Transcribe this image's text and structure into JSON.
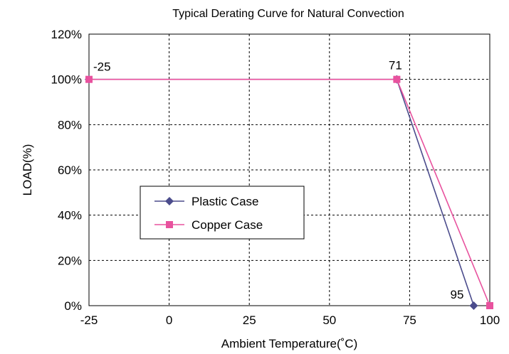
{
  "chart_data": {
    "type": "line",
    "title": "Typical Derating Curve for Natural Convection",
    "xlabel": "Ambient Temperature(˚C)",
    "ylabel": "LOAD(%)",
    "xlim": [
      -25,
      100
    ],
    "ylim": [
      0,
      120
    ],
    "x_ticks": [
      -25,
      0,
      25,
      50,
      75,
      100
    ],
    "x_tick_labels": [
      "-25",
      "0",
      "25",
      "50",
      "75",
      "100"
    ],
    "y_ticks": [
      0,
      20,
      40,
      60,
      80,
      100,
      120
    ],
    "y_tick_labels": [
      "0%",
      "20%",
      "40%",
      "60%",
      "80%",
      "100%",
      "120%"
    ],
    "grid": true,
    "legend_position": "center-left",
    "series": [
      {
        "name": "Plastic Case",
        "color": "#4b4c8c",
        "marker": "diamond",
        "points": [
          [
            -25,
            100
          ],
          [
            71,
            100
          ],
          [
            95,
            0
          ]
        ]
      },
      {
        "name": "Copper Case",
        "color": "#e8529e",
        "marker": "square",
        "points": [
          [
            -25,
            100
          ],
          [
            71,
            100
          ],
          [
            100,
            0
          ]
        ]
      }
    ],
    "annotations": [
      {
        "text": "-25",
        "x": -25,
        "y": 100
      },
      {
        "text": "71",
        "x": 71,
        "y": 100
      },
      {
        "text": "95",
        "x": 95,
        "y": 0
      }
    ]
  }
}
